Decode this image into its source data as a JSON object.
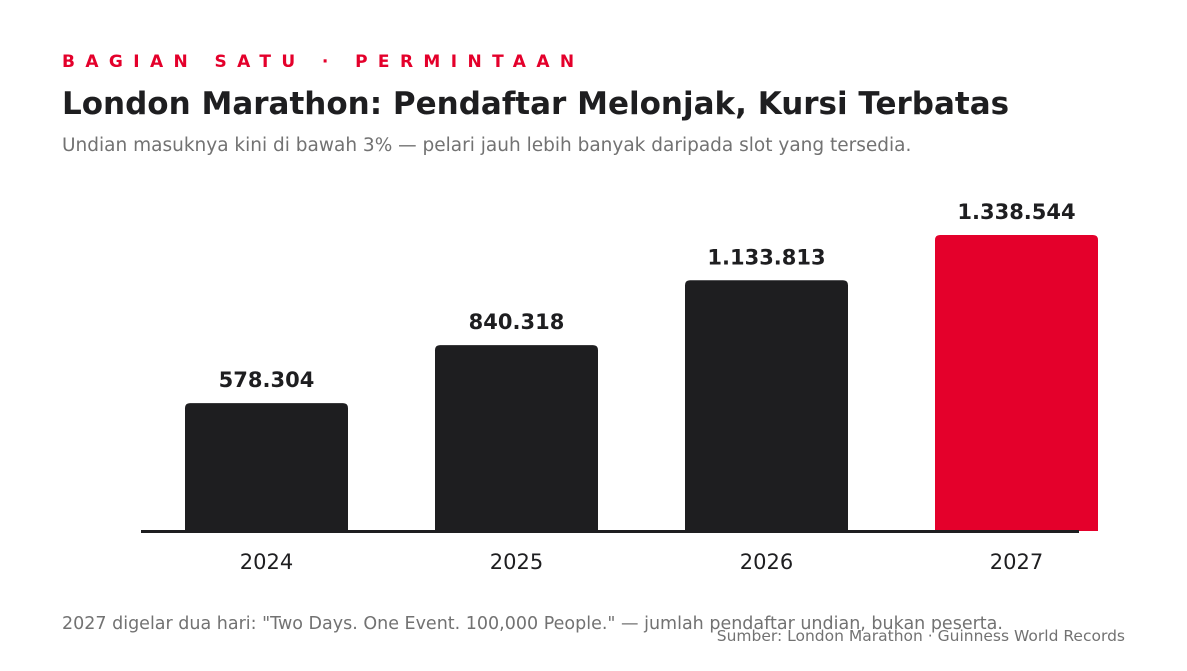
{
  "header": {
    "kicker": "BAGIAN SATU · PERMINTAAN",
    "title": "London Marathon: Pendaftar Melonjak, Kursi Terbatas",
    "subtitle": "Undian masuknya kini di bawah 3% — pelari jauh lebih banyak daripada slot yang tersedia."
  },
  "chart_data": {
    "type": "bar",
    "categories": [
      "2024",
      "2025",
      "2026",
      "2027"
    ],
    "values": [
      578304,
      840318,
      1133813,
      1338544
    ],
    "value_labels": [
      "578.304",
      "840.318",
      "1.133.813",
      "1.338.544"
    ],
    "highlight_index": 3,
    "ylim": [
      0,
      1338544
    ],
    "grid": false,
    "colors": {
      "bar": "#1e1e20",
      "highlight": "#e4002b",
      "axis": "#1e1e20",
      "value_label": "#1e1e20",
      "tick_label": "#1e1e20"
    }
  },
  "footer": {
    "footnote": "2027 digelar dua hari: \"Two Days. One Event. 100,000 People.\" — jumlah pendaftar undian, bukan peserta.",
    "source": "Sumber: London Marathon · Guinness World Records"
  }
}
